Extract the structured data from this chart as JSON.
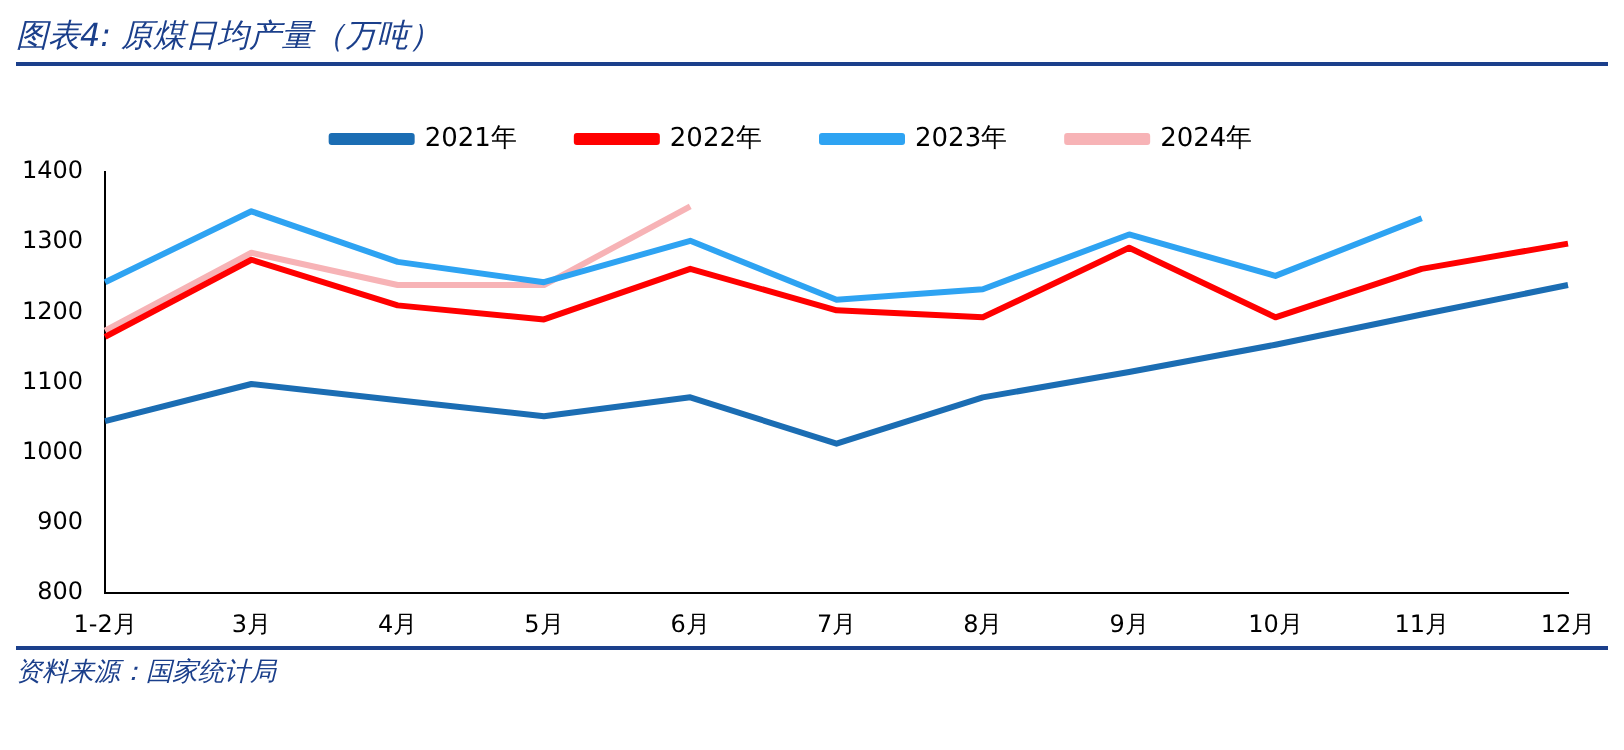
{
  "chart_data": {
    "type": "line",
    "title": "图表4:  原煤日均产量（万吨）",
    "categories": [
      "1-2月",
      "3月",
      "4月",
      "5月",
      "6月",
      "7月",
      "8月",
      "9月",
      "10月",
      "11月",
      "12月"
    ],
    "series": [
      {
        "name": "2021年",
        "color": "#1b6db3",
        "values": [
          1045,
          1098,
          1075,
          1052,
          1079,
          1013,
          1079,
          1115,
          1154,
          1197,
          1239
        ]
      },
      {
        "name": "2022年",
        "color": "#ff0000",
        "values": [
          1165,
          1275,
          1210,
          1190,
          1262,
          1203,
          1193,
          1292,
          1193,
          1262,
          1298
        ]
      },
      {
        "name": "2023年",
        "color": "#2ea3f2",
        "values": [
          1243,
          1344,
          1272,
          1243,
          1302,
          1218,
          1233,
          1311,
          1252,
          1334,
          null
        ]
      },
      {
        "name": "2024年",
        "color": "#f7b3b6",
        "values": [
          1174,
          1285,
          1239,
          1239,
          1351,
          null,
          null,
          null,
          null,
          null,
          null
        ]
      }
    ],
    "ylim": [
      800,
      1400
    ],
    "yticks": [
      800,
      900,
      1000,
      1100,
      1200,
      1300,
      1400
    ],
    "legend": "top",
    "marker": "none",
    "annotations": [
      "资料来源：国家统计局"
    ]
  }
}
